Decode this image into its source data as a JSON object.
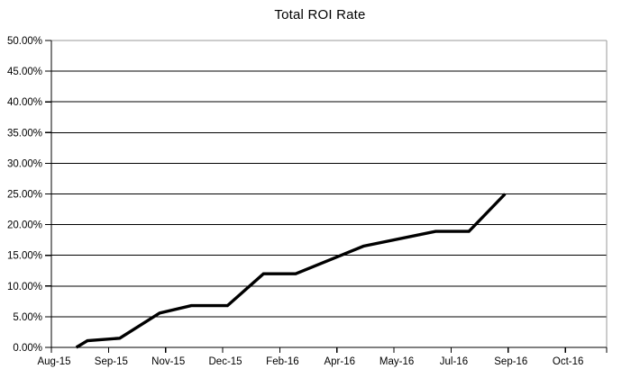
{
  "chart_data": {
    "type": "line",
    "title": "Total ROI Rate",
    "xlabel": "",
    "ylabel": "",
    "ylim": [
      0,
      50
    ],
    "y_tick_step_pct": 5,
    "y_tick_labels": [
      "0.00%",
      "5.00%",
      "10.00%",
      "15.00%",
      "20.00%",
      "25.00%",
      "30.00%",
      "35.00%",
      "40.00%",
      "45.00%",
      "50.00%"
    ],
    "x_tick_labels": [
      "Aug-15",
      "Sep-15",
      "Nov-15",
      "Dec-15",
      "Feb-16",
      "Apr-16",
      "May-16",
      "Jul-16",
      "Sep-16",
      "Oct-16"
    ],
    "grid": "horizontal-on",
    "legend": "none",
    "colors": {
      "line": "#000000",
      "gridline": "#000000",
      "plot_border": "#9a9a9a",
      "axis": "#000000",
      "text": "#000000",
      "background": "#ffffff"
    },
    "series": [
      {
        "name": "Total ROI Rate",
        "points": [
          {
            "x_frac": 0.045,
            "pct": 0.0
          },
          {
            "x_frac": 0.065,
            "pct": 1.1
          },
          {
            "x_frac": 0.123,
            "pct": 1.5
          },
          {
            "x_frac": 0.195,
            "pct": 5.6
          },
          {
            "x_frac": 0.252,
            "pct": 6.8
          },
          {
            "x_frac": 0.317,
            "pct": 6.8
          },
          {
            "x_frac": 0.382,
            "pct": 12.0
          },
          {
            "x_frac": 0.44,
            "pct": 12.0
          },
          {
            "x_frac": 0.562,
            "pct": 16.5
          },
          {
            "x_frac": 0.692,
            "pct": 18.9
          },
          {
            "x_frac": 0.752,
            "pct": 18.9
          },
          {
            "x_frac": 0.817,
            "pct": 25.0
          }
        ]
      }
    ]
  }
}
